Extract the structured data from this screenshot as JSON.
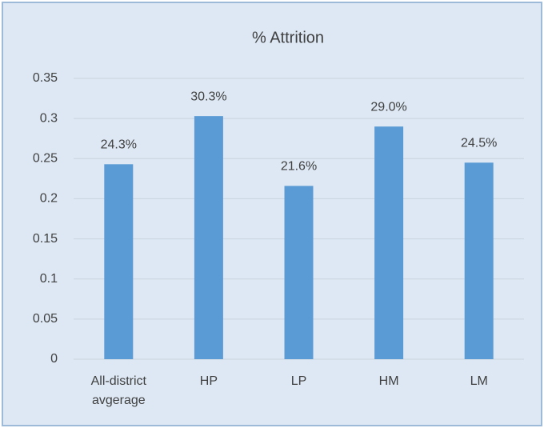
{
  "chart_data": {
    "type": "bar",
    "title": "% Attrition",
    "categories": [
      "All-district avgerage",
      "HP",
      "LP",
      "HM",
      "LM"
    ],
    "values": [
      0.243,
      0.303,
      0.216,
      0.29,
      0.245
    ],
    "value_labels": [
      "24.3%",
      "30.3%",
      "21.6%",
      "29.0%",
      "24.5%"
    ],
    "color": "#5b9bd5",
    "ylim": [
      0,
      0.35
    ],
    "yticks": [
      0,
      0.05,
      0.1,
      0.15,
      0.2,
      0.25,
      0.3,
      0.35
    ],
    "grid": true
  }
}
